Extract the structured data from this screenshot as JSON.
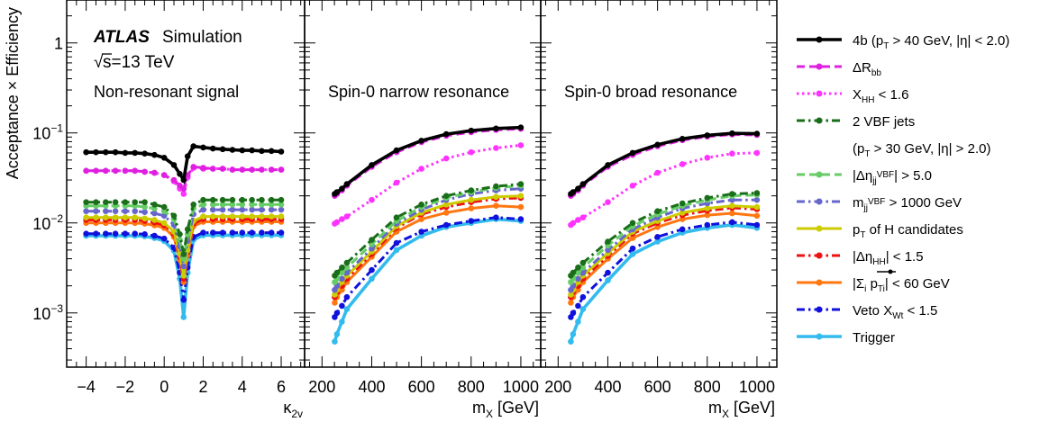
{
  "figure": {
    "ylabel": "Acceptance × Efficiency",
    "atlas": "ATLAS",
    "simulation": "Simulation",
    "energy_sqrt": "√",
    "energy_rest": "s=13 TeV"
  },
  "chart_data": [
    {
      "type": "line",
      "id": "kappa",
      "title": "Non-resonant signal",
      "xlabel": "κ2v",
      "xlim": [
        -5.0,
        7.2
      ],
      "ylim": [
        0.00025,
        3.0
      ],
      "yscale": "log",
      "xticks": [
        -4,
        -2,
        0,
        2,
        4,
        6
      ],
      "yticks": [
        0.001,
        0.01,
        0.1,
        1
      ],
      "ytick_labels": [
        "10−3",
        "10−2",
        "10−1",
        "1"
      ],
      "x": [
        -4,
        -3.5,
        -3,
        -2.5,
        -2,
        -1.5,
        -1,
        -0.5,
        0,
        0.5,
        0.8,
        1,
        1.2,
        1.5,
        2,
        2.5,
        3,
        3.5,
        4,
        4.5,
        5,
        5.5,
        6
      ],
      "series": [
        {
          "name": "4b (pT > 40 GeV, |η| < 2.0)",
          "values": [
            0.061,
            0.061,
            0.061,
            0.061,
            0.06,
            0.06,
            0.059,
            0.057,
            0.053,
            0.044,
            0.035,
            0.03,
            0.055,
            0.071,
            0.069,
            0.067,
            0.066,
            0.065,
            0.064,
            0.064,
            0.063,
            0.063,
            0.062
          ]
        },
        {
          "name": "ΔRbb",
          "values": [
            0.038,
            0.038,
            0.038,
            0.038,
            0.038,
            0.038,
            0.037,
            0.036,
            0.034,
            0.03,
            0.026,
            0.024,
            0.034,
            0.042,
            0.041,
            0.04,
            0.04,
            0.039,
            0.039,
            0.039,
            0.039,
            0.039,
            0.039
          ]
        },
        {
          "name": "XHH < 1.6",
          "values": [
            0.038,
            0.038,
            0.038,
            0.038,
            0.038,
            0.038,
            0.037,
            0.036,
            0.034,
            0.029,
            0.024,
            0.021,
            0.032,
            0.041,
            0.04,
            0.04,
            0.04,
            0.039,
            0.039,
            0.039,
            0.039,
            0.039,
            0.039
          ]
        },
        {
          "name": "2 VBF jets",
          "values": [
            0.017,
            0.017,
            0.017,
            0.017,
            0.017,
            0.017,
            0.017,
            0.016,
            0.015,
            0.012,
            0.0075,
            0.0045,
            0.0085,
            0.016,
            0.018,
            0.018,
            0.018,
            0.018,
            0.018,
            0.018,
            0.018,
            0.018,
            0.018
          ]
        },
        {
          "name": "|ΔηjjVBF| > 5.0",
          "values": [
            0.0155,
            0.0155,
            0.0155,
            0.0155,
            0.0155,
            0.0155,
            0.015,
            0.0145,
            0.0135,
            0.011,
            0.0065,
            0.004,
            0.0075,
            0.0145,
            0.016,
            0.016,
            0.016,
            0.016,
            0.016,
            0.016,
            0.016,
            0.016,
            0.016
          ]
        },
        {
          "name": "mjjVBF > 1000 GeV",
          "values": [
            0.0135,
            0.0135,
            0.0135,
            0.0135,
            0.0135,
            0.0135,
            0.0132,
            0.0128,
            0.012,
            0.0095,
            0.0055,
            0.0033,
            0.0063,
            0.0125,
            0.014,
            0.014,
            0.014,
            0.014,
            0.014,
            0.014,
            0.014,
            0.014,
            0.014
          ]
        },
        {
          "name": "pT of H candidates",
          "values": [
            0.0115,
            0.0115,
            0.0115,
            0.0115,
            0.0115,
            0.0115,
            0.0112,
            0.0108,
            0.01,
            0.008,
            0.0045,
            0.0026,
            0.005,
            0.0105,
            0.0118,
            0.0118,
            0.0118,
            0.0118,
            0.0118,
            0.0118,
            0.0118,
            0.0118,
            0.0118
          ]
        },
        {
          "name": "|ΔηHH| < 1.5",
          "values": [
            0.0108,
            0.0108,
            0.0108,
            0.0108,
            0.0108,
            0.0108,
            0.0105,
            0.0101,
            0.0094,
            0.0075,
            0.0042,
            0.0024,
            0.0047,
            0.0098,
            0.011,
            0.011,
            0.011,
            0.011,
            0.011,
            0.011,
            0.011,
            0.011,
            0.011
          ]
        },
        {
          "name": "|Σi pTi| < 60 GeV",
          "values": [
            0.01,
            0.01,
            0.01,
            0.01,
            0.01,
            0.01,
            0.0098,
            0.0094,
            0.0088,
            0.007,
            0.0039,
            0.0022,
            0.0044,
            0.0092,
            0.0103,
            0.0103,
            0.0103,
            0.0103,
            0.0103,
            0.0103,
            0.0103,
            0.0103,
            0.0103
          ]
        },
        {
          "name": "Veto XWt < 1.5",
          "values": [
            0.0076,
            0.0076,
            0.0076,
            0.0076,
            0.0076,
            0.0076,
            0.0075,
            0.0072,
            0.0067,
            0.0053,
            0.0028,
            0.0014,
            0.0032,
            0.007,
            0.0078,
            0.0078,
            0.0078,
            0.0078,
            0.0078,
            0.0078,
            0.0078,
            0.0078,
            0.0078
          ]
        },
        {
          "name": "Trigger",
          "values": [
            0.0072,
            0.0072,
            0.0072,
            0.0072,
            0.0072,
            0.0072,
            0.0071,
            0.0068,
            0.0063,
            0.0049,
            0.0024,
            0.0009,
            0.0028,
            0.0065,
            0.0073,
            0.0073,
            0.0073,
            0.0073,
            0.0073,
            0.0073,
            0.0073,
            0.0073,
            0.0073
          ]
        }
      ]
    },
    {
      "type": "line",
      "id": "narrow",
      "title": "Spin-0 narrow resonance",
      "xlabel": "mX [GeV]",
      "xlim": [
        130,
        1080
      ],
      "ylim": [
        0.00025,
        3.0
      ],
      "yscale": "log",
      "xticks": [
        200,
        400,
        600,
        800,
        1000
      ],
      "x": [
        251,
        260,
        280,
        300,
        400,
        500,
        600,
        700,
        800,
        900,
        1000
      ],
      "series": [
        {
          "name": "4b (pT > 40 GeV, |η| < 2.0)",
          "values": [
            0.021,
            0.022,
            0.024,
            0.027,
            0.044,
            0.064,
            0.082,
            0.097,
            0.106,
            0.112,
            0.115
          ]
        },
        {
          "name": "ΔRbb",
          "values": [
            0.02,
            0.021,
            0.023,
            0.026,
            0.042,
            0.061,
            0.079,
            0.093,
            0.102,
            0.108,
            0.111
          ]
        },
        {
          "name": "XHH < 1.6",
          "values": [
            0.0098,
            0.0102,
            0.011,
            0.0118,
            0.018,
            0.028,
            0.04,
            0.052,
            0.061,
            0.068,
            0.073
          ]
        },
        {
          "name": "2 VBF jets",
          "values": [
            0.0026,
            0.0028,
            0.0032,
            0.0036,
            0.0065,
            0.0115,
            0.016,
            0.02,
            0.023,
            0.0255,
            0.027
          ]
        },
        {
          "name": "|ΔηjjVBF| > 5.0",
          "values": [
            0.0022,
            0.0024,
            0.0028,
            0.0032,
            0.0058,
            0.0105,
            0.015,
            0.019,
            0.022,
            0.0245,
            0.026
          ]
        },
        {
          "name": "mjjVBF > 1000 GeV",
          "values": [
            0.0018,
            0.002,
            0.0024,
            0.0028,
            0.0052,
            0.0098,
            0.014,
            0.018,
            0.021,
            0.023,
            0.024
          ]
        },
        {
          "name": "pT of H candidates",
          "values": [
            0.0016,
            0.0018,
            0.0022,
            0.0026,
            0.0048,
            0.0092,
            0.013,
            0.016,
            0.018,
            0.0195,
            0.02
          ]
        },
        {
          "name": "|ΔηHH| < 1.5",
          "values": [
            0.0015,
            0.0017,
            0.002,
            0.0024,
            0.0045,
            0.0088,
            0.0125,
            0.015,
            0.017,
            0.0185,
            0.019
          ]
        },
        {
          "name": "|Σi pTi| < 60 GeV",
          "values": [
            0.0013,
            0.0015,
            0.0018,
            0.0022,
            0.0042,
            0.008,
            0.011,
            0.013,
            0.0145,
            0.0155,
            0.015
          ]
        },
        {
          "name": "Veto XWt < 1.5",
          "values": [
            0.0009,
            0.001,
            0.0012,
            0.0015,
            0.003,
            0.006,
            0.008,
            0.0095,
            0.0105,
            0.0115,
            0.011
          ]
        },
        {
          "name": "Trigger",
          "values": [
            0.00048,
            0.00058,
            0.0008,
            0.0011,
            0.0024,
            0.005,
            0.0072,
            0.009,
            0.01,
            0.011,
            0.0105
          ]
        }
      ]
    },
    {
      "type": "line",
      "id": "broad",
      "title": "Spin-0 broad resonance",
      "xlabel": "mX [GeV]",
      "xlim": [
        130,
        1080
      ],
      "ylim": [
        0.00025,
        3.0
      ],
      "yscale": "log",
      "xticks": [
        200,
        400,
        600,
        800,
        1000
      ],
      "x": [
        251,
        260,
        280,
        300,
        400,
        500,
        600,
        700,
        800,
        900,
        1000
      ],
      "series": [
        {
          "name": "4b (pT > 40 GeV, |η| < 2.0)",
          "values": [
            0.021,
            0.022,
            0.024,
            0.027,
            0.044,
            0.06,
            0.074,
            0.086,
            0.094,
            0.099,
            0.098
          ]
        },
        {
          "name": "ΔRbb",
          "values": [
            0.02,
            0.021,
            0.023,
            0.026,
            0.042,
            0.057,
            0.071,
            0.083,
            0.091,
            0.096,
            0.095
          ]
        },
        {
          "name": "XHH < 1.6",
          "values": [
            0.0095,
            0.01,
            0.0108,
            0.0115,
            0.017,
            0.026,
            0.036,
            0.045,
            0.053,
            0.059,
            0.06
          ]
        },
        {
          "name": "2 VBF jets",
          "values": [
            0.0026,
            0.0028,
            0.0032,
            0.0036,
            0.0062,
            0.01,
            0.0135,
            0.0165,
            0.019,
            0.021,
            0.0215
          ]
        },
        {
          "name": "|ΔηjjVBF| > 5.0",
          "values": [
            0.0022,
            0.0024,
            0.0028,
            0.0032,
            0.0056,
            0.0092,
            0.0125,
            0.0155,
            0.018,
            0.02,
            0.0205
          ]
        },
        {
          "name": "mjjVBF > 1000 GeV",
          "values": [
            0.0018,
            0.002,
            0.0024,
            0.0028,
            0.005,
            0.0085,
            0.0115,
            0.0145,
            0.0165,
            0.018,
            0.018
          ]
        },
        {
          "name": "pT of H candidates",
          "values": [
            0.0016,
            0.0018,
            0.0022,
            0.0026,
            0.0046,
            0.008,
            0.0105,
            0.013,
            0.0145,
            0.0155,
            0.015
          ]
        },
        {
          "name": "|ΔηHH| < 1.5",
          "values": [
            0.0015,
            0.0017,
            0.002,
            0.0024,
            0.0043,
            0.0076,
            0.01,
            0.0122,
            0.0137,
            0.0147,
            0.0142
          ]
        },
        {
          "name": "|Σi pTi| < 60 GeV",
          "values": [
            0.0013,
            0.0015,
            0.0018,
            0.0022,
            0.004,
            0.0068,
            0.009,
            0.011,
            0.0122,
            0.0128,
            0.012
          ]
        },
        {
          "name": "Veto XWt < 1.5",
          "values": [
            0.0009,
            0.001,
            0.0012,
            0.0015,
            0.0028,
            0.0052,
            0.007,
            0.0085,
            0.0095,
            0.0102,
            0.0095
          ]
        },
        {
          "name": "Trigger",
          "values": [
            0.00048,
            0.00058,
            0.0008,
            0.0011,
            0.0023,
            0.0045,
            0.0062,
            0.0078,
            0.0088,
            0.0095,
            0.0088
          ]
        }
      ]
    }
  ],
  "legend": [
    {
      "label": "4b (pT > 40 GeV, |η| < 2.0)",
      "color": "#000000",
      "dash": "solid",
      "marker": true
    },
    {
      "label": "ΔRbb",
      "color": "#e020e0",
      "dash": "dash",
      "marker": true
    },
    {
      "label": "XHH < 1.6",
      "color": "#ff33ff",
      "dash": "dot",
      "marker": true
    },
    {
      "label": "2 VBF jets",
      "color": "#1a6e1a",
      "dash": "dashdot",
      "marker": true
    },
    {
      "label": "(pT > 30 GeV, |η| > 2.0)",
      "color": "none",
      "dash": "none",
      "marker": false
    },
    {
      "label": "|ΔηjjVBF| > 5.0",
      "color": "#66cc66",
      "dash": "dash",
      "marker": true
    },
    {
      "label": "mjjVBF > 1000 GeV",
      "color": "#6666cc",
      "dash": "dashdot",
      "marker": true
    },
    {
      "label": "pT of H candidates",
      "color": "#cccc00",
      "dash": "solid",
      "marker": true
    },
    {
      "label": "|ΔηHH| < 1.5",
      "color": "#ee1111",
      "dash": "dashdot",
      "marker": true
    },
    {
      "label": "|Σi pTi| < 60 GeV",
      "color": "#ff7711",
      "dash": "solid",
      "marker": true
    },
    {
      "label": "Veto XWt < 1.5",
      "color": "#1111dd",
      "dash": "dashdot",
      "marker": true
    },
    {
      "label": "Trigger",
      "color": "#33bbee",
      "dash": "solid",
      "marker": true
    }
  ]
}
